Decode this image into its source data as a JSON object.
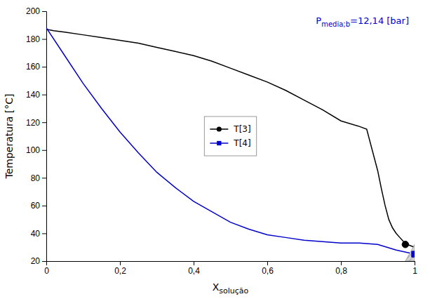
{
  "chart_data": {
    "type": "line",
    "xlabel": "X",
    "xlabel_subscript": "solução",
    "ylabel": "Temperatura [°C]",
    "annotation": {
      "text": "P",
      "subscript": "media;b",
      "text_after": "=12,14 [bar]",
      "color": "#0000CC"
    },
    "xlim": [
      0,
      1
    ],
    "ylim": [
      20,
      200
    ],
    "xticks": [
      0,
      {
        "value": 0.2,
        "label": "0,2"
      },
      {
        "value": 0.4,
        "label": "0,4"
      },
      {
        "value": 0.6,
        "label": "0,6"
      },
      {
        "value": 0.8,
        "label": "0,8"
      },
      1
    ],
    "yticks": [
      20,
      40,
      60,
      80,
      100,
      120,
      140,
      160,
      180,
      200
    ],
    "legend": "center",
    "series": [
      {
        "name": "T[3]",
        "color": "#000000",
        "marker": "circle",
        "x": [
          0.0,
          0.02,
          0.05,
          0.1,
          0.15,
          0.2,
          0.25,
          0.3,
          0.35,
          0.4,
          0.45,
          0.5,
          0.55,
          0.6,
          0.65,
          0.7,
          0.75,
          0.8,
          0.85,
          0.87,
          0.9,
          0.91,
          0.92,
          0.93,
          0.94,
          0.95,
          0.96,
          0.97,
          0.975,
          0.98,
          1.0
        ],
        "values": [
          187,
          186,
          185,
          183,
          181,
          179,
          177,
          174,
          171,
          168,
          164,
          159,
          154,
          149,
          143,
          136,
          129,
          121,
          117,
          115,
          85,
          72,
          60,
          50,
          44,
          40,
          37,
          34,
          33,
          32,
          30
        ],
        "point": {
          "x": 0.975,
          "y": 32
        }
      },
      {
        "name": "T[4]",
        "color": "#0000CC",
        "marker": "square",
        "x": [
          0.0,
          0.05,
          0.1,
          0.15,
          0.2,
          0.25,
          0.3,
          0.35,
          0.4,
          0.5,
          0.55,
          0.6,
          0.65,
          0.7,
          0.75,
          0.8,
          0.85,
          0.9,
          0.95,
          1.0
        ],
        "values": [
          188,
          168,
          148,
          130,
          113,
          98,
          84,
          73,
          63,
          48,
          43,
          39,
          37,
          35,
          34,
          33,
          33,
          32,
          28,
          25
        ],
        "point": {
          "x": 1.0,
          "y": 25
        }
      }
    ],
    "region": {
      "x": [
        0.975,
        1.0,
        1.0
      ],
      "y": [
        20,
        20,
        32
      ]
    }
  }
}
